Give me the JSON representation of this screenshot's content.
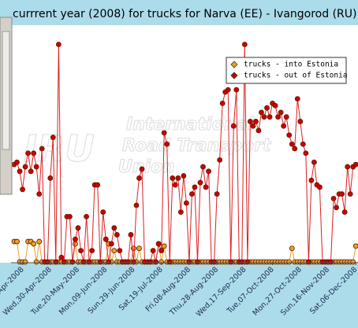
{
  "chart_data": {
    "type": "line",
    "title": "currrent year (2008) for trucks for Narva (EE) - Ivangorod (RU)",
    "watermark": [
      "IRU",
      "International",
      "Road Transport",
      "Union"
    ],
    "legend": "upper right",
    "xlim": [
      "2008-04-04",
      "2008-12-07"
    ],
    "ylim": [
      0,
      100
    ],
    "xticks": [
      {
        "value": "2008-04-10",
        "label": "-Apr-2008"
      },
      {
        "value": "2008-04-30",
        "label": "Wed,30-Apr-2008"
      },
      {
        "value": "2008-05-20",
        "label": "Tue,20-May-2008"
      },
      {
        "value": "2008-06-09",
        "label": "Mon,09-Jun-2008"
      },
      {
        "value": "2008-06-29",
        "label": "Sun,29-Jun-2008"
      },
      {
        "value": "2008-07-19",
        "label": "Sat,19-Jul-2008"
      },
      {
        "value": "2008-08-08",
        "label": "Fri,08-Aug-2008"
      },
      {
        "value": "2008-08-28",
        "label": "Thu,28-Aug-2008"
      },
      {
        "value": "2008-09-17",
        "label": "Wed,17-Sep-2008"
      },
      {
        "value": "2008-10-07",
        "label": "Tue,07-Oct-2008"
      },
      {
        "value": "2008-10-27",
        "label": "Mon,27-Oct-2008"
      },
      {
        "value": "2008-11-16",
        "label": "Sun,16-Nov-2008"
      },
      {
        "value": "2008-12-06",
        "label": "Sat,06-Dec-2008"
      }
    ],
    "x": [
      "2008-04-04",
      "2008-04-06",
      "2008-04-08",
      "2008-04-10",
      "2008-04-12",
      "2008-04-14",
      "2008-04-16",
      "2008-04-18",
      "2008-04-20",
      "2008-04-22",
      "2008-04-24",
      "2008-04-26",
      "2008-04-28",
      "2008-04-30",
      "2008-05-02",
      "2008-05-04",
      "2008-05-06",
      "2008-05-08",
      "2008-05-10",
      "2008-05-12",
      "2008-05-14",
      "2008-05-16",
      "2008-05-18",
      "2008-05-20",
      "2008-05-22",
      "2008-05-24",
      "2008-05-26",
      "2008-05-28",
      "2008-05-30",
      "2008-06-01",
      "2008-06-03",
      "2008-06-05",
      "2008-06-07",
      "2008-06-09",
      "2008-06-11",
      "2008-06-13",
      "2008-06-15",
      "2008-06-17",
      "2008-06-19",
      "2008-06-21",
      "2008-06-23",
      "2008-06-25",
      "2008-06-27",
      "2008-06-29",
      "2008-07-01",
      "2008-07-03",
      "2008-07-05",
      "2008-07-07",
      "2008-07-09",
      "2008-07-11",
      "2008-07-13",
      "2008-07-15",
      "2008-07-17",
      "2008-07-19",
      "2008-07-21",
      "2008-07-23",
      "2008-07-25",
      "2008-07-27",
      "2008-07-29",
      "2008-07-31",
      "2008-08-02",
      "2008-08-04",
      "2008-08-06",
      "2008-08-08",
      "2008-08-10",
      "2008-08-12",
      "2008-08-14",
      "2008-08-16",
      "2008-08-18",
      "2008-08-20",
      "2008-08-22",
      "2008-08-24",
      "2008-08-26",
      "2008-08-28",
      "2008-08-30",
      "2008-09-01",
      "2008-09-03",
      "2008-09-05",
      "2008-09-07",
      "2008-09-09",
      "2008-09-11",
      "2008-09-13",
      "2008-09-15",
      "2008-09-17",
      "2008-09-19",
      "2008-09-21",
      "2008-09-23",
      "2008-09-25",
      "2008-09-27",
      "2008-09-29",
      "2008-10-01",
      "2008-10-03",
      "2008-10-05",
      "2008-10-07",
      "2008-10-09",
      "2008-10-11",
      "2008-10-13",
      "2008-10-15",
      "2008-10-17",
      "2008-10-19",
      "2008-10-21",
      "2008-10-23",
      "2008-10-25",
      "2008-10-27",
      "2008-10-29",
      "2008-10-31",
      "2008-11-02",
      "2008-11-04",
      "2008-11-06",
      "2008-11-08",
      "2008-11-10",
      "2008-11-12",
      "2008-11-14",
      "2008-11-16",
      "2008-11-18",
      "2008-11-20",
      "2008-11-22",
      "2008-11-24",
      "2008-11-26",
      "2008-11-28",
      "2008-11-30",
      "2008-12-02",
      "2008-12-04",
      "2008-12-06"
    ],
    "series": [
      {
        "name": "trucks - into Estonia",
        "color": "#f0a020",
        "line_color": "#e8a030",
        "values": [
          9,
          9,
          0,
          0,
          0,
          9,
          9,
          8,
          0,
          9,
          0,
          0,
          0,
          0,
          0,
          0,
          0,
          0,
          0,
          0,
          0,
          0,
          8,
          0,
          0,
          0,
          0,
          0,
          0,
          0,
          0,
          0,
          0,
          0,
          8,
          0,
          5,
          0,
          0,
          0,
          0,
          0,
          0,
          6,
          0,
          6,
          0,
          0,
          0,
          0,
          0,
          0,
          8,
          0,
          7,
          0,
          0,
          0,
          0,
          0,
          0,
          0,
          0,
          0,
          0,
          0,
          0,
          0,
          0,
          0,
          0,
          0,
          0,
          0,
          0,
          0,
          0,
          0,
          0,
          0,
          0,
          0,
          0,
          0,
          0,
          0,
          0,
          0,
          0,
          0,
          0,
          0,
          0,
          0,
          0,
          0,
          0,
          0,
          0,
          0,
          6,
          0,
          0,
          0,
          0,
          0,
          0,
          0,
          0,
          0,
          0,
          0,
          0,
          0,
          0,
          0,
          0,
          0,
          0,
          0,
          0,
          0,
          0,
          7
        ]
      },
      {
        "name": "trucks - out of Estonia",
        "color": "#cc0000",
        "line_color": "#dd2020",
        "values": [
          43,
          44,
          40,
          32,
          42,
          48,
          40,
          48,
          42,
          30,
          50,
          0,
          0,
          37,
          55,
          0,
          96,
          2,
          0,
          20,
          20,
          0,
          10,
          15,
          5,
          0,
          20,
          0,
          5,
          34,
          34,
          0,
          22,
          10,
          0,
          8,
          15,
          12,
          5,
          0,
          0,
          0,
          12,
          0,
          25,
          37,
          41,
          0,
          0,
          0,
          5,
          0,
          8,
          5,
          57,
          52,
          0,
          37,
          34,
          37,
          22,
          38,
          26,
          0,
          30,
          33,
          0,
          35,
          42,
          33,
          40,
          0,
          0,
          30,
          45,
          70,
          75,
          76,
          0,
          60,
          76,
          0,
          0,
          96,
          0,
          62,
          60,
          62,
          58,
          66,
          64,
          68,
          64,
          70,
          69,
          64,
          66,
          60,
          64,
          56,
          52,
          50,
          72,
          62,
          52,
          48,
          0,
          36,
          44,
          34,
          33,
          0,
          0,
          0,
          0,
          28,
          24,
          30,
          30,
          22,
          42,
          30,
          42,
          43
        ]
      }
    ]
  }
}
